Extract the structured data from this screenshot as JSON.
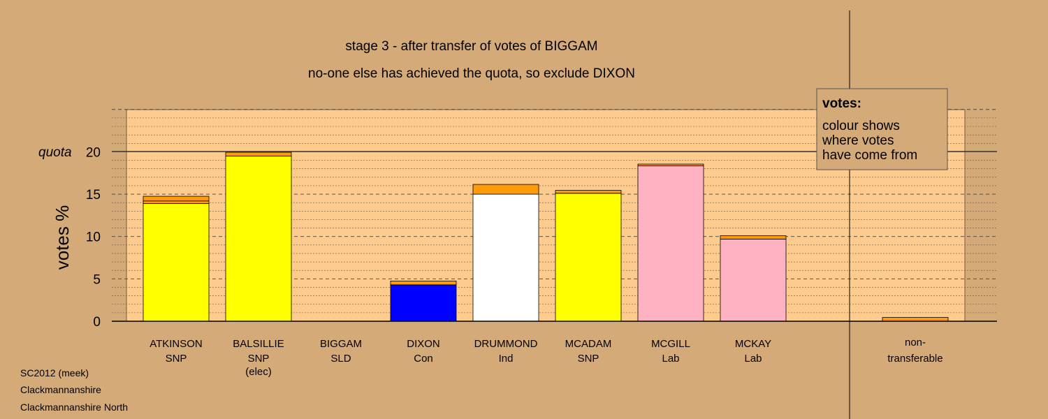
{
  "footer": {
    "lines": [
      "SC2012 (meek)",
      "Clackmannanshire",
      "Clackmannanshire North"
    ]
  },
  "legend": {
    "title": "votes:",
    "lines": [
      "colour shows",
      "where votes",
      "have come from"
    ]
  },
  "colors": {
    "background": "#d4aa78",
    "plot": "#fdcb8e",
    "SNP": "#ffff00",
    "Con": "#0000ff",
    "Ind": "#ffffff",
    "Lab": "#ffb2c1",
    "transfer": "#ff9a08"
  },
  "chart_data": {
    "type": "bar",
    "stacked": true,
    "title": "stage 3 - after transfer of votes of BIGGAM",
    "subtitle": "no-one else has achieved the quota, so exclude DIXON",
    "ylabel": "votes %",
    "ylim": [
      0,
      25
    ],
    "yticks": [
      0,
      5,
      10,
      15,
      20
    ],
    "quota": 20,
    "quota_label": "quota",
    "categories": [
      {
        "name": "ATKINSON",
        "party": "SNP",
        "note": "",
        "color": "#ffff00",
        "base": 13.9,
        "transfers": [
          0.3,
          0.55
        ]
      },
      {
        "name": "BALSILLIE",
        "party": "SNP",
        "note": "(elec)",
        "color": "#ffff00",
        "base": 19.5,
        "transfers": [
          0.45
        ]
      },
      {
        "name": "BIGGAM",
        "party": "SLD",
        "note": "",
        "color": "#fdcb8e",
        "base": 0,
        "transfers": []
      },
      {
        "name": "DIXON",
        "party": "Con",
        "note": "",
        "color": "#0000ff",
        "base": 4.3,
        "transfers": [
          0.45
        ]
      },
      {
        "name": "DRUMMOND",
        "party": "Ind",
        "note": "",
        "color": "#ffffff",
        "base": 15.0,
        "transfers": [
          1.15
        ]
      },
      {
        "name": "MCADAM",
        "party": "SNP",
        "note": "",
        "color": "#ffff00",
        "base": 15.1,
        "transfers": [
          0.35
        ]
      },
      {
        "name": "MCGILL",
        "party": "Lab",
        "note": "",
        "color": "#ffb2c1",
        "base": 18.35,
        "transfers": [
          0.2
        ]
      },
      {
        "name": "MCKAY",
        "party": "Lab",
        "note": "",
        "color": "#ffb2c1",
        "base": 9.7,
        "transfers": [
          0.4
        ]
      }
    ],
    "nontransferable": {
      "label1": "non-",
      "label2": "transferable",
      "value": 0.45
    }
  }
}
